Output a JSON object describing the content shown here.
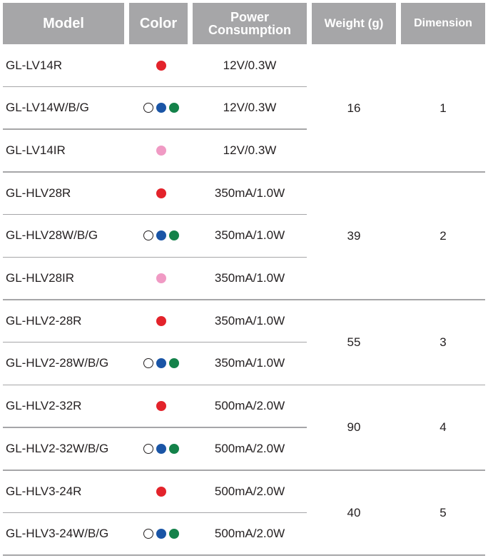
{
  "headers": {
    "model": "Model",
    "color": "Color",
    "power_line1": "Power",
    "power_line2": "Consumption",
    "weight": "Weight (g)",
    "dimension": "Dimension"
  },
  "colors": {
    "header_bg": "#a6a6a8",
    "red": "#e3232b",
    "blue": "#1a55a6",
    "green": "#14824a",
    "pink": "#f09ac4",
    "divider": "#a6a6a8"
  },
  "rows": [
    {
      "model": "GL-LV14R",
      "dots": [
        "red"
      ],
      "power": "12V/0.3W"
    },
    {
      "model": "GL-LV14W/B/G",
      "dots": [
        "white",
        "blue",
        "green"
      ],
      "power": "12V/0.3W"
    },
    {
      "model": "GL-LV14IR",
      "dots": [
        "pink"
      ],
      "power": "12V/0.3W"
    },
    {
      "model": "GL-HLV28R",
      "dots": [
        "red"
      ],
      "power": "350mA/1.0W"
    },
    {
      "model": "GL-HLV28W/B/G",
      "dots": [
        "white",
        "blue",
        "green"
      ],
      "power": "350mA/1.0W"
    },
    {
      "model": "GL-HLV28IR",
      "dots": [
        "pink"
      ],
      "power": "350mA/1.0W"
    },
    {
      "model": "GL-HLV2-28R",
      "dots": [
        "red"
      ],
      "power": "350mA/1.0W"
    },
    {
      "model": "GL-HLV2-28W/B/G",
      "dots": [
        "white",
        "blue",
        "green"
      ],
      "power": "350mA/1.0W"
    },
    {
      "model": "GL-HLV2-32R",
      "dots": [
        "red"
      ],
      "power": "500mA/2.0W"
    },
    {
      "model": "GL-HLV2-32W/B/G",
      "dots": [
        "white",
        "blue",
        "green"
      ],
      "power": "500mA/2.0W"
    },
    {
      "model": "GL-HLV3-24R",
      "dots": [
        "red"
      ],
      "power": "500mA/2.0W"
    },
    {
      "model": "GL-HLV3-24W/B/G",
      "dots": [
        "white",
        "blue",
        "green"
      ],
      "power": "500mA/2.0W"
    }
  ],
  "groups": [
    {
      "weight": "16",
      "dimension": "1",
      "row_count": 3
    },
    {
      "weight": "39",
      "dimension": "2",
      "row_count": 3
    },
    {
      "weight": "55",
      "dimension": "3",
      "row_count": 2
    },
    {
      "weight": "90",
      "dimension": "4",
      "row_count": 2
    },
    {
      "weight": "40",
      "dimension": "5",
      "row_count": 2
    }
  ]
}
